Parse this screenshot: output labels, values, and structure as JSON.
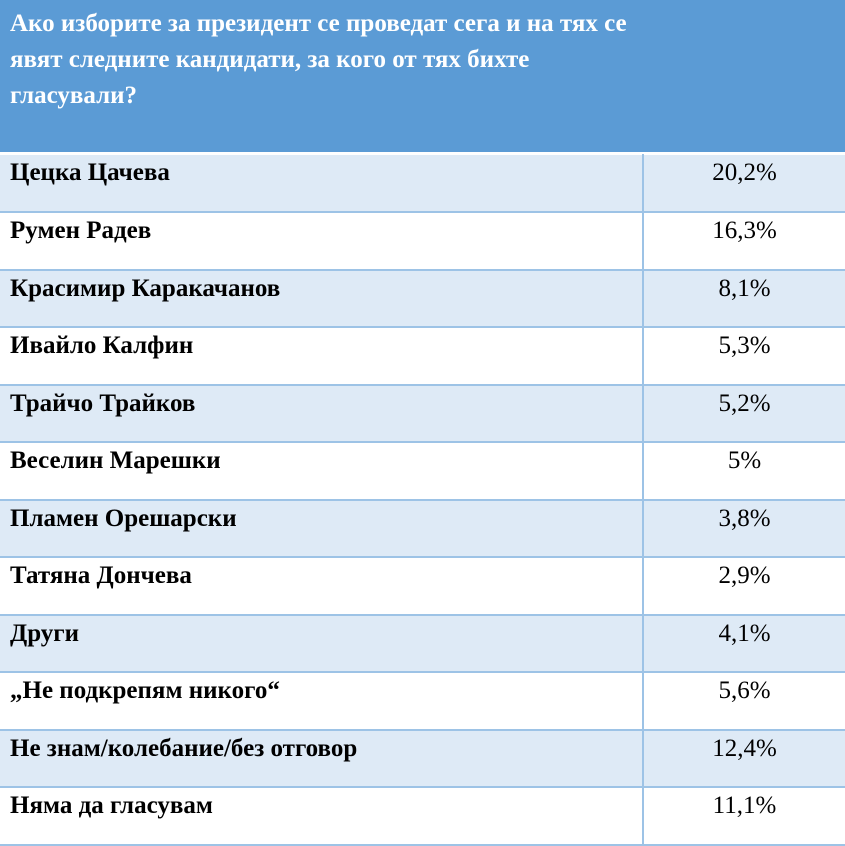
{
  "header": {
    "question": "Ако изборите за президент се проведат сега и на тях се явят следните кандидати, за кого от тях бихте гласували?"
  },
  "rows": [
    {
      "name": "Цецка Цачева",
      "value": "20,2%"
    },
    {
      "name": "Румен Радев",
      "value": "16,3%"
    },
    {
      "name": "Красимир Каракачанов",
      "value": "8,1%"
    },
    {
      "name": "Ивайло Калфин",
      "value": "5,3%"
    },
    {
      "name": "Трайчо Трайков",
      "value": "5,2%"
    },
    {
      "name": "Веселин Марешки",
      "value": "5%"
    },
    {
      "name": "Пламен Орешарски",
      "value": "3,8%"
    },
    {
      "name": "Татяна Дончева",
      "value": "2,9%"
    },
    {
      "name": "Други",
      "value": "4,1%"
    },
    {
      "name": "„Не подкрепям никого“",
      "value": "5,6%"
    },
    {
      "name": "Не знам/колебание/без отговор",
      "value": "12,4%"
    },
    {
      "name": "Няма да гласувам",
      "value": "11,1%"
    }
  ],
  "colors": {
    "header_bg": "#5b9bd5",
    "row_shaded": "#deeaf6",
    "row_plain": "#ffffff",
    "border": "#9dc3e6"
  }
}
